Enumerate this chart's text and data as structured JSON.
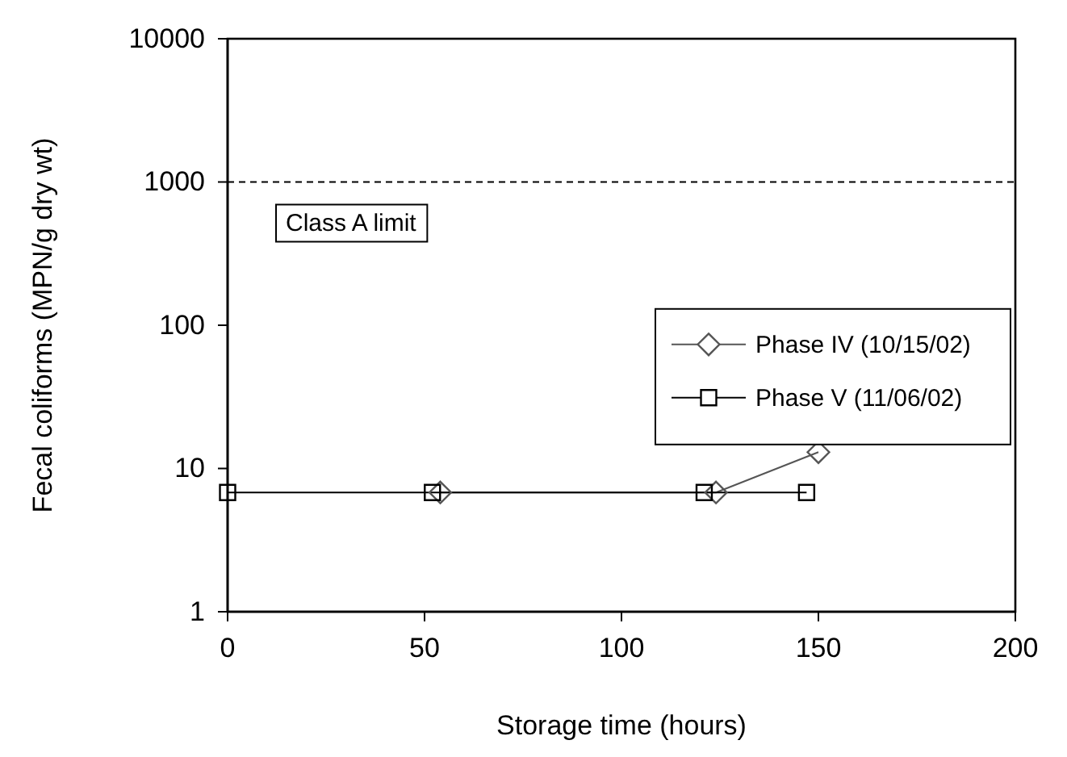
{
  "chart_data": {
    "type": "line",
    "xlabel": "Storage time (hours)",
    "ylabel": "Fecal coliforms (MPN/g dry wt)",
    "xlim": [
      0,
      200
    ],
    "xticks": [
      0,
      50,
      100,
      150,
      200
    ],
    "ylim": [
      1,
      10000
    ],
    "yticks": [
      1,
      10,
      100,
      1000,
      10000
    ],
    "log": true,
    "grid": false,
    "legend": "right",
    "ref_lines": [
      {
        "axis": "y",
        "value": 1000,
        "label": "Class A limit",
        "line_style": "dashed",
        "color": "#000000"
      }
    ],
    "series": [
      {
        "name": "Phase IV (10/15/02)",
        "color": "#555555",
        "marker": "diamond",
        "x": [
          54,
          124,
          150
        ],
        "values": [
          6.8,
          6.8,
          13
        ]
      },
      {
        "name": "Phase V (11/06/02)",
        "color": "#000000",
        "marker": "square",
        "x": [
          0,
          52,
          121,
          147
        ],
        "values": [
          6.8,
          6.8,
          6.8,
          6.8
        ]
      }
    ]
  }
}
